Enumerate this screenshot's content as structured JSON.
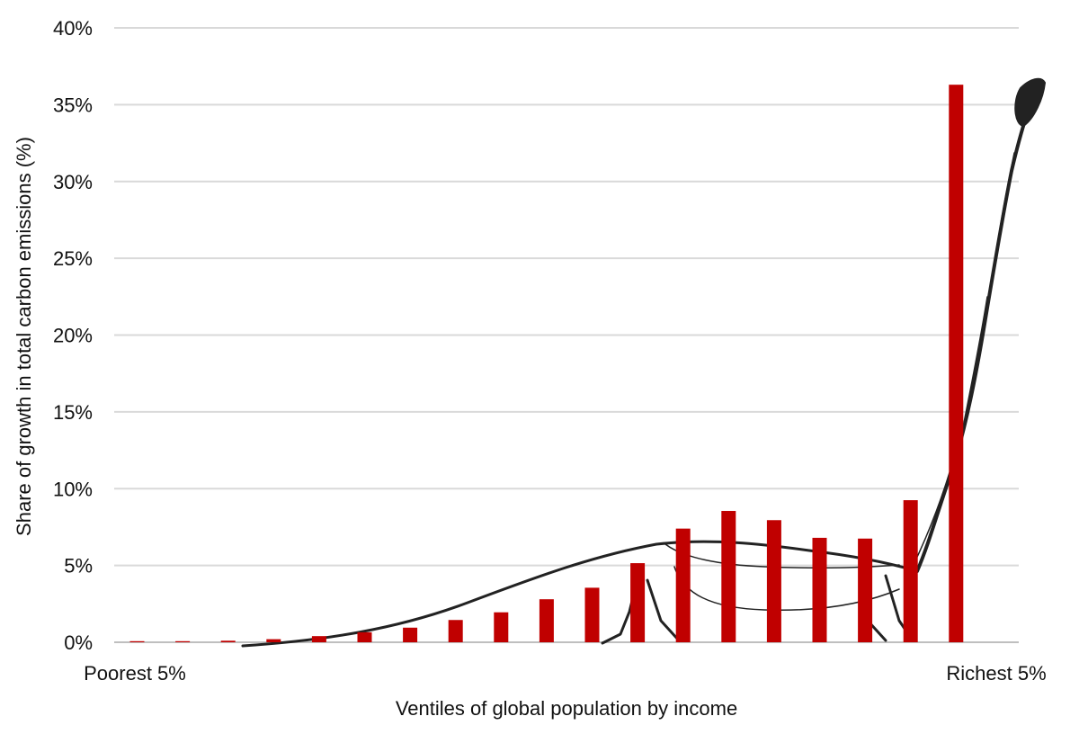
{
  "chart_data": {
    "type": "bar",
    "xlabel": "Ventiles of global population by income",
    "ylabel": "Share of growth in total carbon emissions (%)",
    "x_end_labels": {
      "left": "Poorest 5%",
      "right": "Richest 5%"
    },
    "ylim": [
      0,
      40
    ],
    "yticks": [
      {
        "value": 0,
        "label": "0%"
      },
      {
        "value": 5,
        "label": "5%"
      },
      {
        "value": 10,
        "label": "10%"
      },
      {
        "value": 15,
        "label": "15%"
      },
      {
        "value": 20,
        "label": "20%"
      },
      {
        "value": 25,
        "label": "25%"
      },
      {
        "value": 30,
        "label": "30%"
      },
      {
        "value": 35,
        "label": "35%"
      },
      {
        "value": 40,
        "label": "40%"
      }
    ],
    "grid": true,
    "bar_color": "#c00000",
    "values": [
      0.0,
      0.05,
      0.1,
      0.2,
      0.4,
      0.65,
      0.95,
      1.45,
      1.95,
      2.8,
      3.55,
      5.15,
      7.4,
      8.55,
      7.95,
      6.8,
      6.75,
      9.25,
      36.3
    ]
  }
}
